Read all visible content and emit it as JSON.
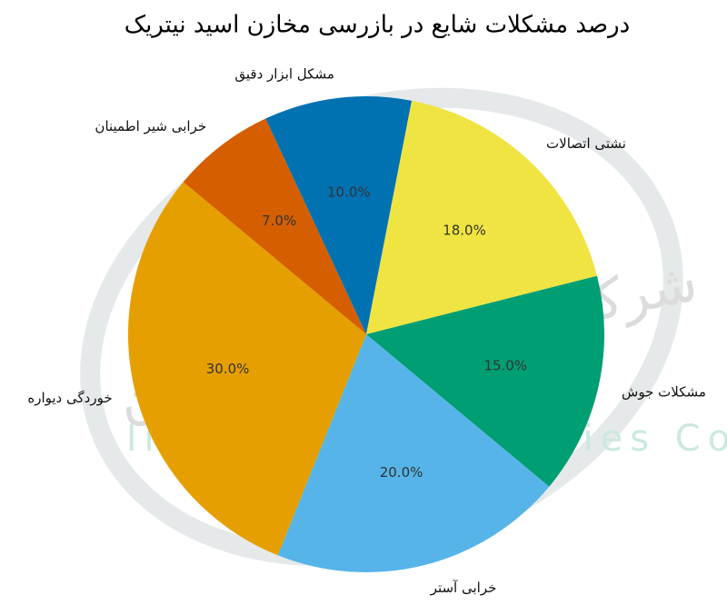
{
  "chart_data": {
    "type": "pie",
    "title": "درصد مشکلات شایع در بازرسی مخازن اسید نیتریک",
    "watermark": [
      "شرکت صنایع نیتریک ایران",
      "Iran Nitric Industries Co"
    ],
    "categories": [
      "نشتی اتصالات",
      "مشکلات جوش",
      "خرابی آستر",
      "خوردگی دیواره",
      "خرابی شیر اطمینان",
      "مشکل ابزار دقیق"
    ],
    "values": [
      18,
      15,
      20,
      30,
      7,
      10
    ],
    "value_labels": [
      "18.0%",
      "15.0%",
      "20.0%",
      "30.0%",
      "7.0%",
      "10.0%"
    ],
    "colors": [
      "#f0e442",
      "#009e73",
      "#56b4e9",
      "#e69f00",
      "#d55e00",
      "#0072b2"
    ]
  }
}
